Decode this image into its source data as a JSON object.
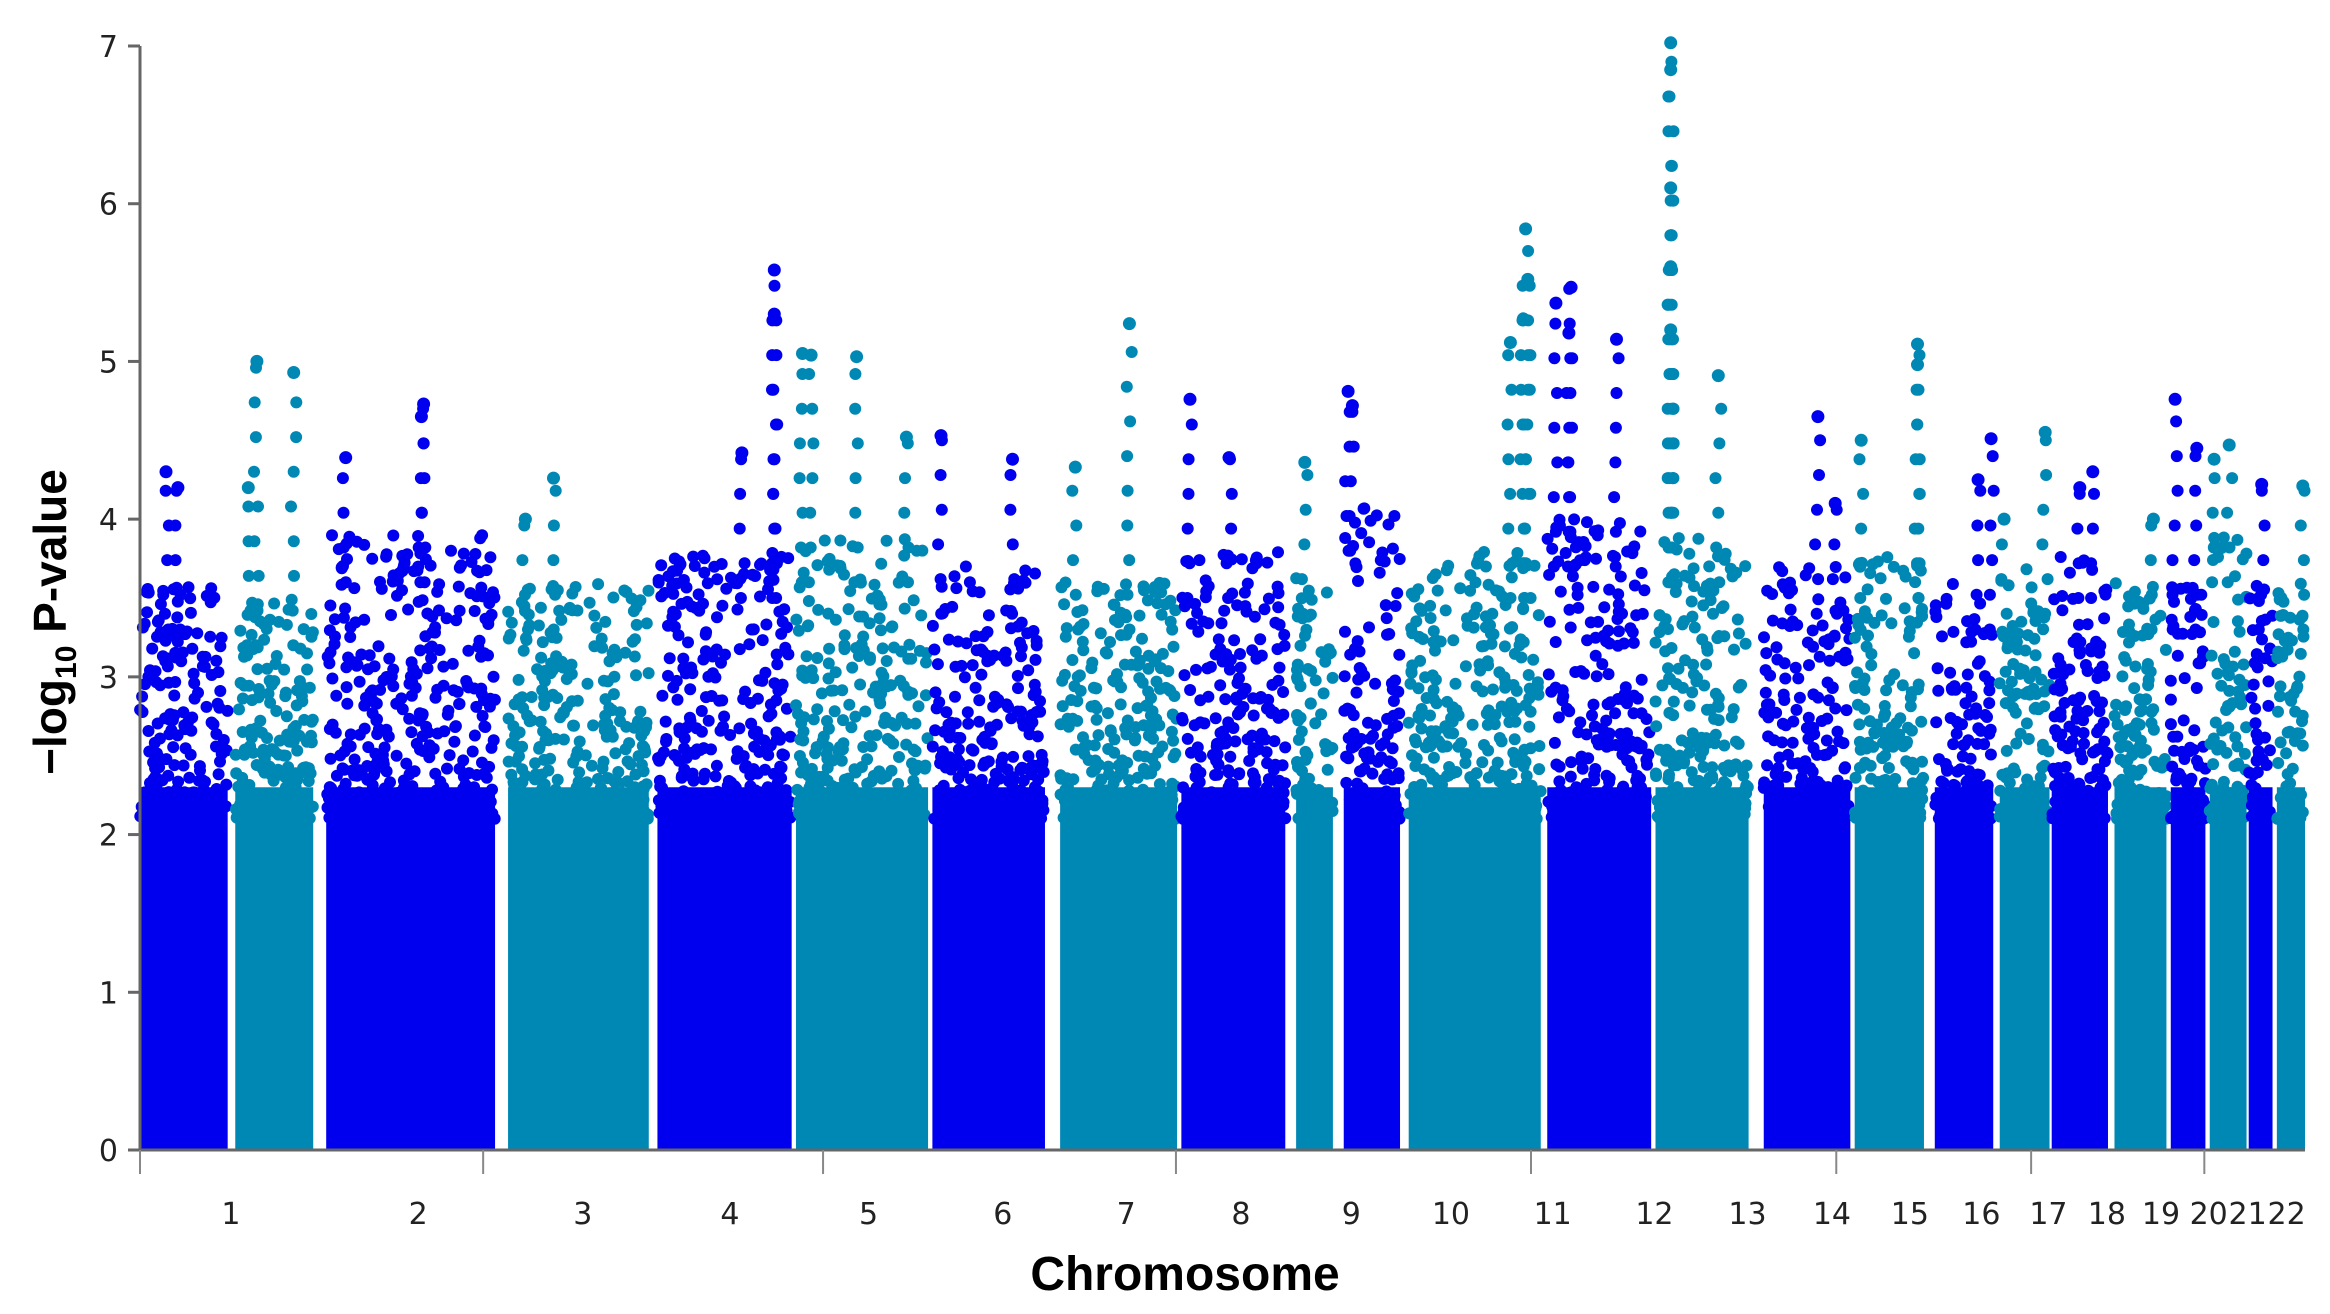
{
  "chart_data": {
    "type": "scatter",
    "subtype": "manhattan",
    "xlabel": "Chromosome",
    "ylabel_main": "−log",
    "ylabel_sub": "10",
    "ylabel_rest": " P-value",
    "ylim": [
      0,
      7
    ],
    "yticks": [
      0,
      1,
      2,
      3,
      4,
      5,
      6,
      7
    ],
    "grid": false,
    "legend": "none",
    "colors": {
      "odd": "#0000ee",
      "even": "#0088b5"
    },
    "chromosomes": [
      {
        "label": "1",
        "start": 0.0,
        "end": 0.0405,
        "base": 3.6,
        "peaks": [
          [
            0.012,
            4.3
          ],
          [
            0.0175,
            4.2
          ]
        ]
      },
      {
        "label": "1",
        "start": 0.044,
        "end": 0.08,
        "base": 3.5,
        "peaks": [
          [
            0.054,
            5.0
          ],
          [
            0.071,
            4.93
          ],
          [
            0.05,
            4.2
          ]
        ]
      },
      {
        "label": "2",
        "start": 0.086,
        "end": 0.164,
        "base": 3.9,
        "peaks": [
          [
            0.131,
            4.73
          ],
          [
            0.13,
            4.65
          ],
          [
            0.095,
            4.39
          ]
        ]
      },
      {
        "label": "3",
        "start": 0.17,
        "end": 0.235,
        "base": 3.6,
        "peaks": [
          [
            0.191,
            4.26
          ],
          [
            0.178,
            4.0
          ]
        ]
      },
      {
        "label": "4",
        "start": 0.239,
        "end": 0.301,
        "base": 3.8,
        "peaks": [
          [
            0.293,
            5.58
          ],
          [
            0.293,
            5.3
          ],
          [
            0.278,
            4.42
          ]
        ]
      },
      {
        "label": "5",
        "start": 0.303,
        "end": 0.364,
        "base": 3.9,
        "peaks": [
          [
            0.306,
            5.05
          ],
          [
            0.31,
            5.04
          ],
          [
            0.331,
            5.03
          ],
          [
            0.354,
            4.52
          ]
        ]
      },
      {
        "label": "6",
        "start": 0.366,
        "end": 0.418,
        "base": 3.7,
        "peaks": [
          [
            0.37,
            4.53
          ],
          [
            0.403,
            4.38
          ]
        ]
      },
      {
        "label": "7",
        "start": 0.425,
        "end": 0.479,
        "base": 3.6,
        "peaks": [
          [
            0.457,
            5.24
          ],
          [
            0.432,
            4.33
          ]
        ]
      },
      {
        "label": "8",
        "start": 0.481,
        "end": 0.529,
        "base": 3.8,
        "peaks": [
          [
            0.485,
            4.76
          ],
          [
            0.503,
            4.39
          ]
        ]
      },
      {
        "label": "9",
        "start": 0.534,
        "end": 0.551,
        "base": 3.7,
        "peaks": [
          [
            0.538,
            4.36
          ]
        ]
      },
      {
        "label": "9",
        "start": 0.556,
        "end": 0.582,
        "base": 4.1,
        "peaks": [
          [
            0.558,
            4.81
          ],
          [
            0.56,
            4.72
          ]
        ]
      },
      {
        "label": "10",
        "start": 0.586,
        "end": 0.647,
        "base": 3.8,
        "peaks": [
          [
            0.64,
            5.84
          ],
          [
            0.641,
            5.52
          ],
          [
            0.639,
            5.27
          ],
          [
            0.633,
            5.12
          ]
        ]
      },
      {
        "label": "11",
        "start": 0.65,
        "end": 0.698,
        "base": 4.0,
        "peaks": [
          [
            0.661,
            5.47
          ],
          [
            0.654,
            5.37
          ],
          [
            0.682,
            5.14
          ],
          [
            0.66,
            5.18
          ]
        ]
      },
      {
        "label": "12",
        "start": 0.7,
        "end": 0.743,
        "base": 3.9,
        "peaks": [
          [
            0.707,
            7.02
          ],
          [
            0.707,
            6.85
          ],
          [
            0.707,
            6.1
          ],
          [
            0.707,
            5.6
          ],
          [
            0.707,
            5.2
          ],
          [
            0.729,
            4.91
          ]
        ]
      },
      {
        "label": "13",
        "start": 0.75,
        "end": 0.79,
        "base": 3.7,
        "peaks": [
          [
            0.775,
            4.65
          ],
          [
            0.783,
            4.1
          ]
        ]
      },
      {
        "label": "14",
        "start": 0.792,
        "end": 0.824,
        "base": 3.8,
        "peaks": [
          [
            0.821,
            5.11
          ],
          [
            0.821,
            4.98
          ],
          [
            0.795,
            4.5
          ]
        ]
      },
      {
        "label": "15",
        "start": 0.829,
        "end": 0.856,
        "base": 3.6,
        "peaks": [
          [
            0.855,
            4.51
          ],
          [
            0.849,
            4.25
          ]
        ]
      },
      {
        "label": "16",
        "start": 0.859,
        "end": 0.882,
        "base": 3.7,
        "peaks": [
          [
            0.88,
            4.55
          ],
          [
            0.861,
            4.0
          ]
        ]
      },
      {
        "label": "17",
        "start": 0.883,
        "end": 0.909,
        "base": 3.8,
        "peaks": [
          [
            0.902,
            4.3
          ],
          [
            0.896,
            4.2
          ]
        ]
      },
      {
        "label": "18",
        "start": 0.912,
        "end": 0.936,
        "base": 3.6,
        "peaks": [
          [
            0.93,
            4.0
          ]
        ]
      },
      {
        "label": "19",
        "start": 0.938,
        "end": 0.954,
        "base": 3.6,
        "peaks": [
          [
            0.94,
            4.76
          ],
          [
            0.95,
            4.45
          ]
        ]
      },
      {
        "label": "20",
        "start": 0.956,
        "end": 0.973,
        "base": 3.9,
        "peaks": [
          [
            0.965,
            4.47
          ],
          [
            0.958,
            4.38
          ]
        ]
      },
      {
        "label": "21",
        "start": 0.974,
        "end": 0.985,
        "base": 3.6,
        "peaks": [
          [
            0.98,
            4.22
          ]
        ]
      },
      {
        "label": "22",
        "start": 0.987,
        "end": 1.0,
        "base": 3.6,
        "peaks": [
          [
            0.999,
            4.21
          ]
        ]
      }
    ],
    "xticks": [
      {
        "label": "1",
        "x": 0.042
      },
      {
        "label": "2",
        "x": 0.1285
      },
      {
        "label": "3",
        "x": 0.2045
      },
      {
        "label": "4",
        "x": 0.2725
      },
      {
        "label": "5",
        "x": 0.3365
      },
      {
        "label": "6",
        "x": 0.3985
      },
      {
        "label": "7",
        "x": 0.4555
      },
      {
        "label": "8",
        "x": 0.5085
      },
      {
        "label": "9",
        "x": 0.5595
      },
      {
        "label": "10",
        "x": 0.6055
      },
      {
        "label": "11",
        "x": 0.6525
      },
      {
        "label": "12",
        "x": 0.6995
      },
      {
        "label": "13",
        "x": 0.7425
      },
      {
        "label": "14",
        "x": 0.7815
      },
      {
        "label": "15",
        "x": 0.8175
      },
      {
        "label": "16",
        "x": 0.8505
      },
      {
        "label": "17",
        "x": 0.8815
      },
      {
        "label": "18",
        "x": 0.9085
      },
      {
        "label": "19",
        "x": 0.9335
      },
      {
        "label": "20",
        "x": 0.9555
      },
      {
        "label": "21",
        "x": 0.9735
      },
      {
        "label": "22",
        "x": 0.9915
      }
    ],
    "axis_break_marks": [
      0.0,
      0.1585,
      0.3155,
      0.4785,
      0.6425,
      0.7835,
      0.8735,
      0.9535
    ]
  }
}
